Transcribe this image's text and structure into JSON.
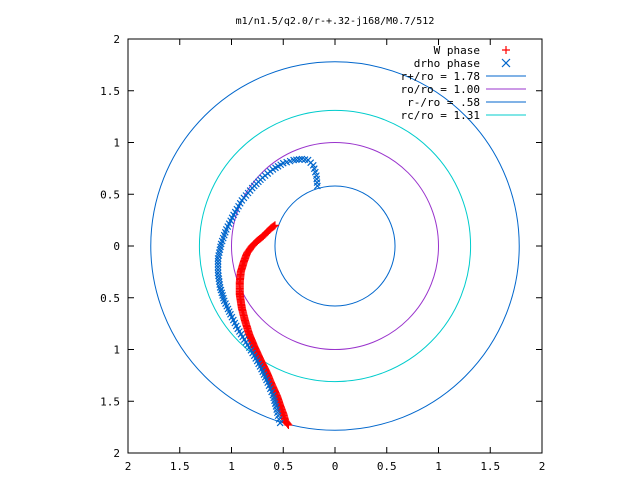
{
  "chart_data": {
    "type": "scatter",
    "title": "m1/n1.5/q2.0/r-+.32-j168/M0.7/512",
    "xlabel": "",
    "ylabel": "",
    "xlim": [
      -2,
      2
    ],
    "ylim": [
      -2,
      2
    ],
    "x_tick_labels": [
      "2",
      "1.5",
      "1",
      "0.5",
      "0",
      "0.5",
      "1",
      "1.5",
      "2"
    ],
    "y_tick_labels": [
      "2",
      "1.5",
      "1",
      "0.5",
      "0",
      "0.5",
      "1",
      "1.5",
      "2"
    ],
    "grid": false,
    "legend_position": "top-right",
    "series": [
      {
        "name": "W phase",
        "kind": "points",
        "marker": "+",
        "color": "#ff0000",
        "x": [
          -0.58,
          -0.62,
          -0.66,
          -0.7,
          -0.75,
          -0.8,
          -0.85,
          -0.88,
          -0.91,
          -0.92,
          -0.92,
          -0.9,
          -0.87,
          -0.83,
          -0.78,
          -0.72,
          -0.66,
          -0.61,
          -0.56,
          -0.53,
          -0.5,
          -0.48,
          -0.45
        ],
        "y": [
          0.2,
          0.17,
          0.13,
          0.09,
          0.05,
          0.0,
          -0.07,
          -0.15,
          -0.25,
          -0.35,
          -0.47,
          -0.6,
          -0.72,
          -0.85,
          -0.97,
          -1.1,
          -1.22,
          -1.34,
          -1.45,
          -1.54,
          -1.62,
          -1.69,
          -1.73
        ]
      },
      {
        "name": "drho phase",
        "kind": "points",
        "marker": "x",
        "color": "#0066cc",
        "x": [
          -0.17,
          -0.18,
          -0.21,
          -0.26,
          -0.32,
          -0.4,
          -0.5,
          -0.6,
          -0.7,
          -0.8,
          -0.9,
          -0.98,
          -1.05,
          -1.1,
          -1.13,
          -1.13,
          -1.11,
          -1.07,
          -1.01,
          -0.94,
          -0.86,
          -0.78,
          -0.71,
          -0.65,
          -0.6,
          -0.57,
          -0.55,
          -0.53
        ],
        "y": [
          0.58,
          0.68,
          0.78,
          0.83,
          0.84,
          0.83,
          0.8,
          0.74,
          0.66,
          0.56,
          0.44,
          0.3,
          0.16,
          0.02,
          -0.12,
          -0.26,
          -0.4,
          -0.53,
          -0.66,
          -0.8,
          -0.93,
          -1.06,
          -1.19,
          -1.32,
          -1.44,
          -1.55,
          -1.64,
          -1.71
        ]
      },
      {
        "name": "r+/ro = 1.78",
        "kind": "circle",
        "radius": 1.78,
        "color": "#0066cc"
      },
      {
        "name": "ro/ro = 1.00",
        "kind": "circle",
        "radius": 1.0,
        "color": "#9933cc"
      },
      {
        "name": "r-/ro = .58",
        "kind": "circle",
        "radius": 0.58,
        "color": "#0066cc"
      },
      {
        "name": "rc/ro = 1.31",
        "kind": "circle",
        "radius": 1.31,
        "color": "#00cccc"
      }
    ]
  }
}
